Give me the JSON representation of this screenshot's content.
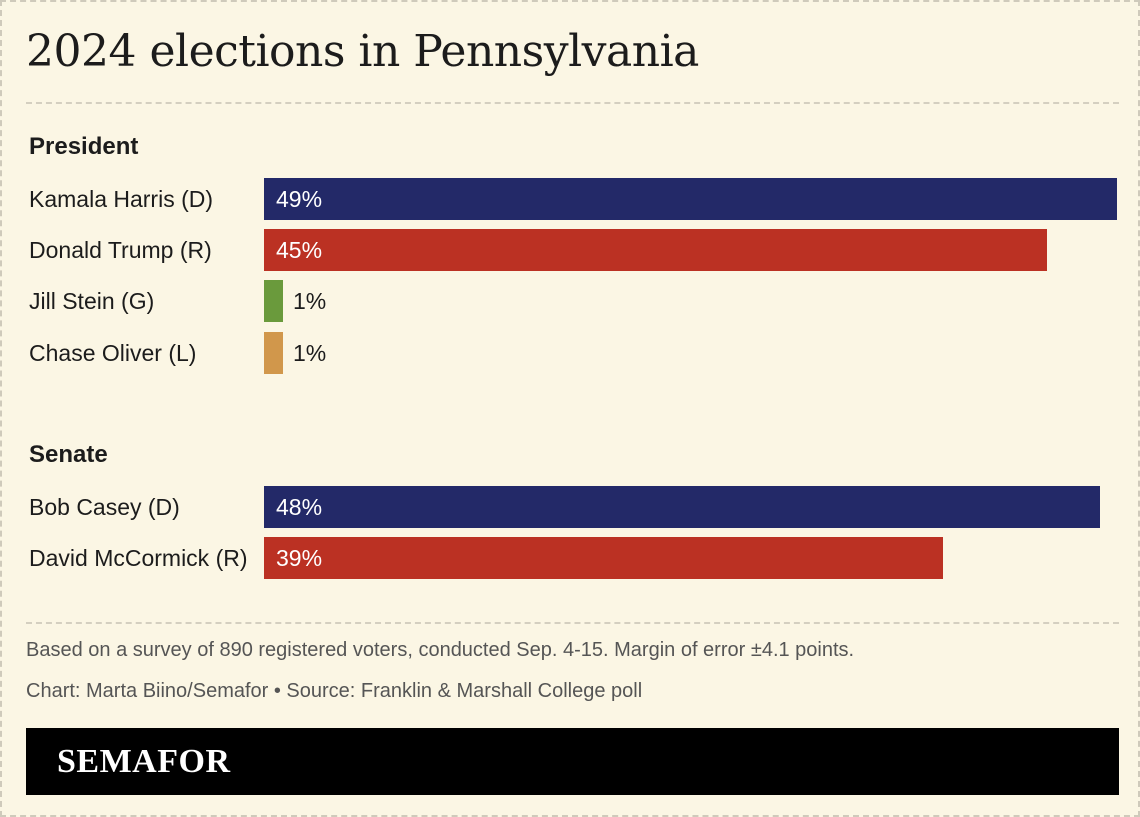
{
  "title": "2024 elections in Pennsylvania",
  "chart_data": [
    {
      "type": "bar",
      "title": "President",
      "categories": [
        "Kamala Harris (D)",
        "Donald Trump (R)",
        "Jill Stein (G)",
        "Chase Oliver (L)"
      ],
      "values": [
        49,
        45,
        1,
        1
      ],
      "labels": [
        "49%",
        "45%",
        "1%",
        "1%"
      ],
      "colors": [
        "#232968",
        "#bb3123",
        "#6a9a3c",
        "#d1974b"
      ],
      "ylim": [
        0,
        49
      ]
    },
    {
      "type": "bar",
      "title": "Senate",
      "categories": [
        "Bob Casey (D)",
        "David McCormick (R)"
      ],
      "values": [
        48,
        39
      ],
      "labels": [
        "48%",
        "39%"
      ],
      "colors": [
        "#232968",
        "#bb3123"
      ],
      "ylim": [
        0,
        49
      ]
    }
  ],
  "notes": {
    "survey": "Based on a survey of 890 registered voters, conducted Sep. 4-15. Margin of error ±4.1 points.",
    "credit": "Chart: Marta Biino/Semafor • Source: Franklin & Marshall College poll"
  },
  "brand": "SEMAFOR"
}
